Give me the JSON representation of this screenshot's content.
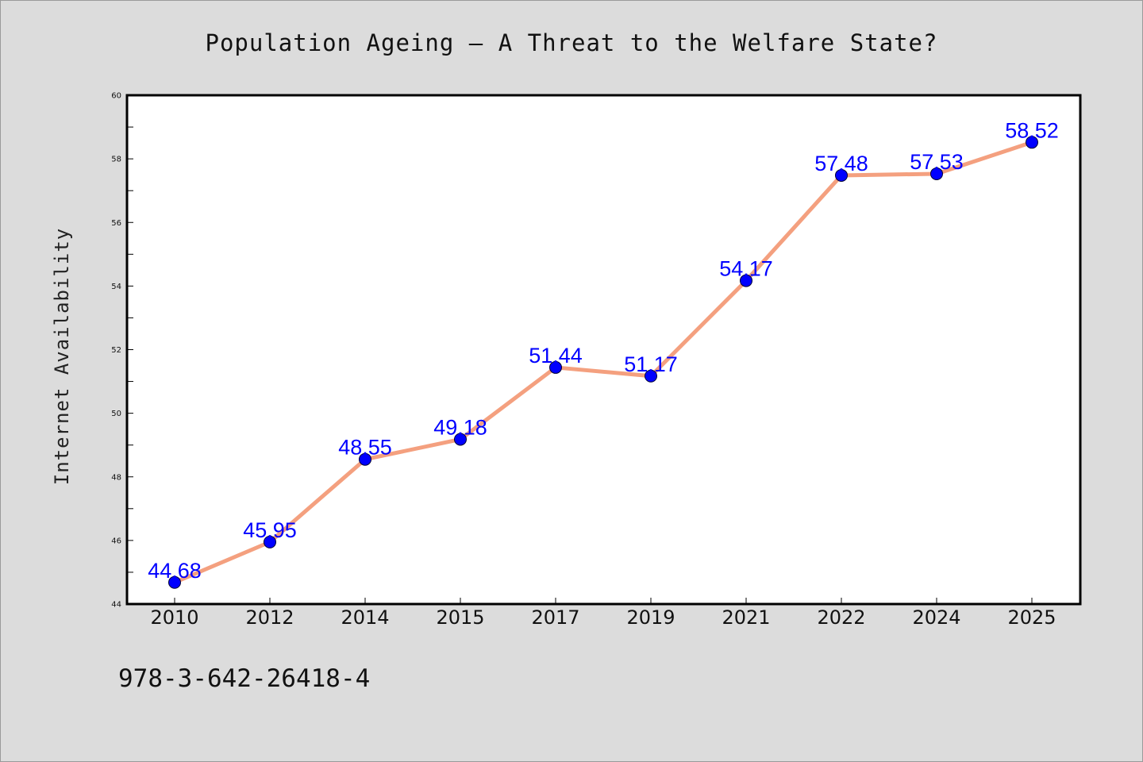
{
  "chart_data": {
    "type": "line",
    "title": "Population Ageing – A Threat to the Welfare State?",
    "xlabel": "",
    "ylabel": "Internet Availability",
    "categories": [
      "2010",
      "2012",
      "2014",
      "2015",
      "2017",
      "2019",
      "2021",
      "2022",
      "2024",
      "2025"
    ],
    "values": [
      44.68,
      45.95,
      48.55,
      49.18,
      51.44,
      51.17,
      54.17,
      57.48,
      57.53,
      58.52
    ],
    "data_labels": [
      "44.68",
      "45.95",
      "48.55",
      "49.18",
      "51.44",
      "51.17",
      "54.17",
      "57.48",
      "57.53",
      "58.52"
    ],
    "ylim": [
      44,
      60
    ],
    "y_ticks": [
      "44",
      "46",
      "48",
      "50",
      "52",
      "54",
      "56",
      "58",
      "60"
    ],
    "grid": false,
    "legend": "none",
    "colors": {
      "line": "#f4a07f",
      "marker": "#0000ff",
      "label": "#0000ff",
      "background": "#dcdcdc",
      "plot_background": "#ffffff"
    }
  },
  "footer": {
    "isbn": "978-3-642-26418-4"
  }
}
